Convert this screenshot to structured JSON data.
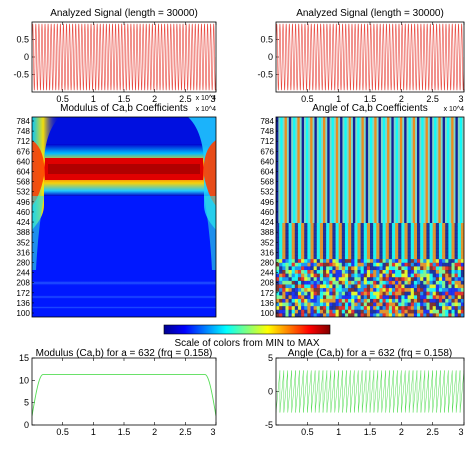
{
  "figure": {
    "colorbar_label": "Scale of colors from MIN to MAX"
  },
  "chart_data": [
    {
      "type": "line",
      "id": "signal-left",
      "title": "Analyzed Signal (length = 30000)",
      "xlim": [
        0,
        3
      ],
      "ylim": [
        -1,
        1
      ],
      "xticks": [
        "0.5",
        "1",
        "1.5",
        "2",
        "2.5",
        "3"
      ],
      "yticks": [
        "0.5",
        "0",
        "-0.5"
      ],
      "x_exponent": "x 10^4",
      "series": [
        {
          "color": "#e8473e",
          "waveform": "sinusoid",
          "amplitude": 0.95,
          "cycles": 60
        }
      ]
    },
    {
      "type": "line",
      "id": "signal-right",
      "title": "Analyzed Signal (length = 30000)",
      "xlim": [
        0,
        3
      ],
      "ylim": [
        -1,
        1
      ],
      "xticks": [
        "0.5",
        "1",
        "1.5",
        "2",
        "2.5",
        "3"
      ],
      "yticks": [
        "0.5",
        "0",
        "-0.5"
      ],
      "x_exponent": "x 10^4",
      "series": [
        {
          "color": "#e8473e",
          "waveform": "sinusoid",
          "amplitude": 0.95,
          "cycles": 60
        }
      ]
    },
    {
      "type": "heatmap",
      "id": "modulus",
      "title": "Modulus of Ca,b Coefficients",
      "colormap": "jet",
      "xlim": [
        0,
        3
      ],
      "yticks": [
        "784",
        "748",
        "712",
        "676",
        "640",
        "604",
        "568",
        "532",
        "496",
        "460",
        "424",
        "388",
        "352",
        "316",
        "280",
        "244",
        "208",
        "172",
        "136",
        "100"
      ],
      "x_exponent": "x 10^4",
      "features": {
        "peak_scale": 632,
        "edge_effects": "left and right",
        "background_level": "low"
      }
    },
    {
      "type": "heatmap",
      "id": "angle",
      "title": "Angle of Ca,b Coefficients",
      "colormap": "jet",
      "xlim": [
        0,
        3
      ],
      "yticks": [
        "784",
        "748",
        "712",
        "676",
        "640",
        "604",
        "568",
        "532",
        "496",
        "460",
        "424",
        "388",
        "352",
        "316",
        "280",
        "244",
        "208",
        "172",
        "136",
        "100"
      ],
      "x_exponent": "x 10^4",
      "features": {
        "pattern": "vertical stripes",
        "noise_band": "lower scales"
      }
    },
    {
      "type": "line",
      "id": "modulus-at-a",
      "title": "Modulus (Ca,b) for a = 632  (frq =   0.158)",
      "xlim": [
        0,
        3
      ],
      "ylim": [
        0,
        15
      ],
      "xticks": [
        "0.5",
        "1",
        "1.5",
        "2",
        "2.5",
        "3"
      ],
      "yticks": [
        "15",
        "10",
        "5",
        "0"
      ],
      "series": [
        {
          "color": "#55dd55",
          "shape": "plateau",
          "plateau_value": 11.3,
          "ramp_start": [
            0,
            2
          ],
          "ramp_end": [
            3,
            2
          ]
        }
      ]
    },
    {
      "type": "line",
      "id": "angle-at-a",
      "title": "Angle (Ca,b) for a = 632  (frq =   0.158)",
      "xlim": [
        0,
        3
      ],
      "ylim": [
        -5,
        5
      ],
      "xticks": [
        "0.5",
        "1",
        "1.5",
        "2",
        "2.5",
        "3"
      ],
      "yticks": [
        "5",
        "0",
        "-5"
      ],
      "series": [
        {
          "color": "#55dd55",
          "shape": "sawtooth",
          "min": -3.14,
          "max": 3.14,
          "cycles": 48
        }
      ]
    }
  ]
}
